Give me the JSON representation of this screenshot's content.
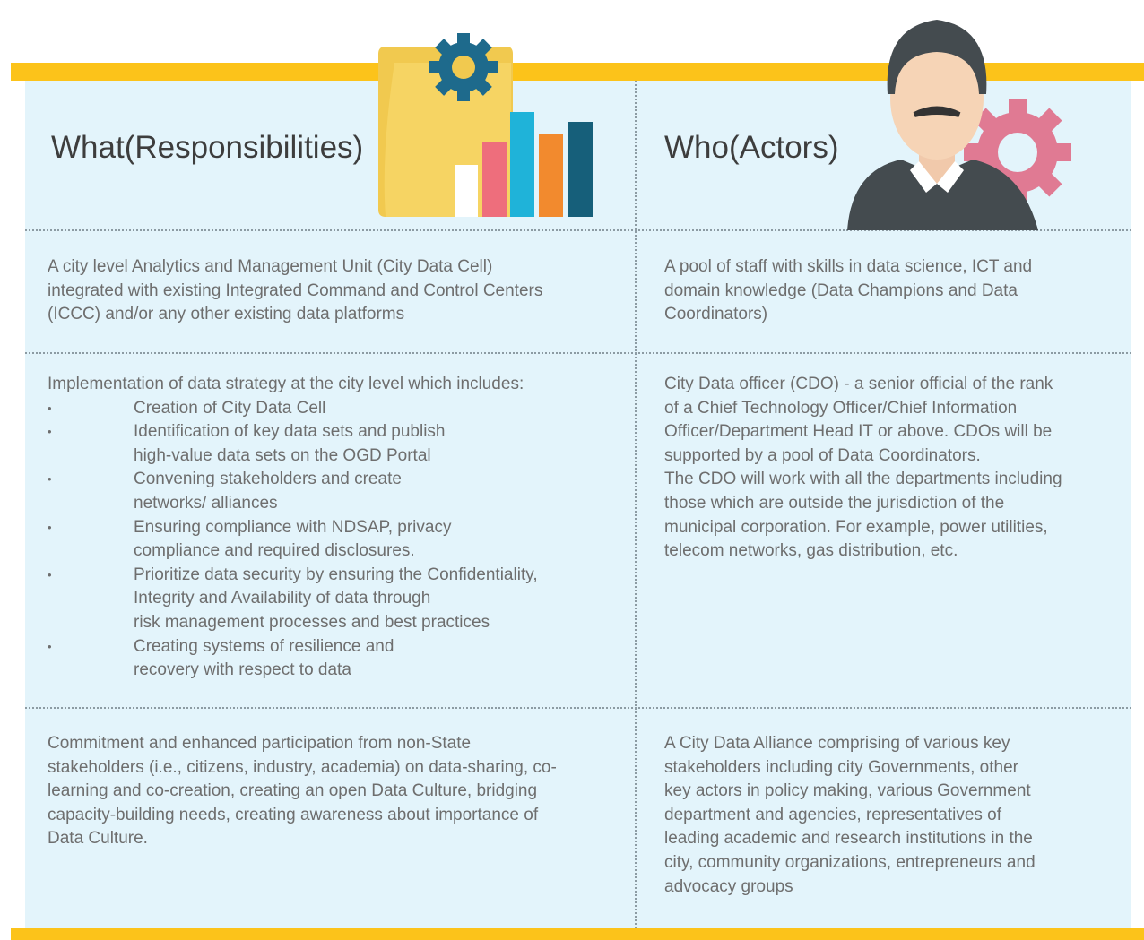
{
  "header": {
    "what": [
      "What",
      "(Responsibilities)"
    ],
    "who": [
      "Who",
      "(Actors)"
    ]
  },
  "rows": [
    {
      "what": {
        "lines": [
          "A city level Analytics and Management Unit (City Data Cell)",
          "integrated with existing Integrated Command and Control Centers",
          "(ICCC) and/or any other existing data platforms"
        ]
      },
      "who": {
        "lines": [
          "A pool of staff with skills in data science, ICT and",
          "domain knowledge (Data Champions and Data",
          "Coordinators)"
        ]
      }
    },
    {
      "what": {
        "lines": [
          "Implementation of data strategy at the city level which includes:"
        ],
        "bullets": [
          [
            "Creation of City Data Cell"
          ],
          [
            "Identification of key data sets and publish",
            "high-value data sets on the OGD Portal"
          ],
          [
            "Convening stakeholders and create",
            "networks/ alliances"
          ],
          [
            "Ensuring compliance with NDSAP, privacy",
            "compliance and required disclosures."
          ],
          [
            "Prioritize data security by ensuring the Confidentiality,",
            "Integrity and Availability of data through",
            "risk management processes and best practices"
          ],
          [
            "Creating systems of resilience and",
            "recovery with respect to data"
          ]
        ]
      },
      "who": {
        "lines": [
          "City Data officer (CDO) - a senior official of the rank",
          "of a Chief Technology Officer/Chief Information",
          "Officer/Department Head IT or above. CDOs will be",
          "supported by a pool of Data Coordinators.",
          "The CDO will work with all the departments including",
          "those which are outside the jurisdiction of the",
          "municipal corporation. For example, power utilities,",
          "telecom networks, gas distribution, etc."
        ]
      }
    },
    {
      "what": {
        "lines": [
          "Commitment and enhanced participation from non-State",
          "stakeholders (i.e., citizens, industry, academia) on data-sharing, co-",
          "learning and co-creation, creating an open Data Culture, bridging",
          "capacity-building needs, creating awareness about importance of",
          "Data Culture."
        ]
      },
      "who": {
        "lines": [
          "A City Data Alliance comprising of various key",
          "stakeholders including city Governments, other",
          "key actors in policy making, various Government",
          "department and agencies, representatives of",
          "leading academic and research institutions in the",
          "city, community organizations, entrepreneurs and",
          "advocacy groups"
        ]
      }
    }
  ]
}
